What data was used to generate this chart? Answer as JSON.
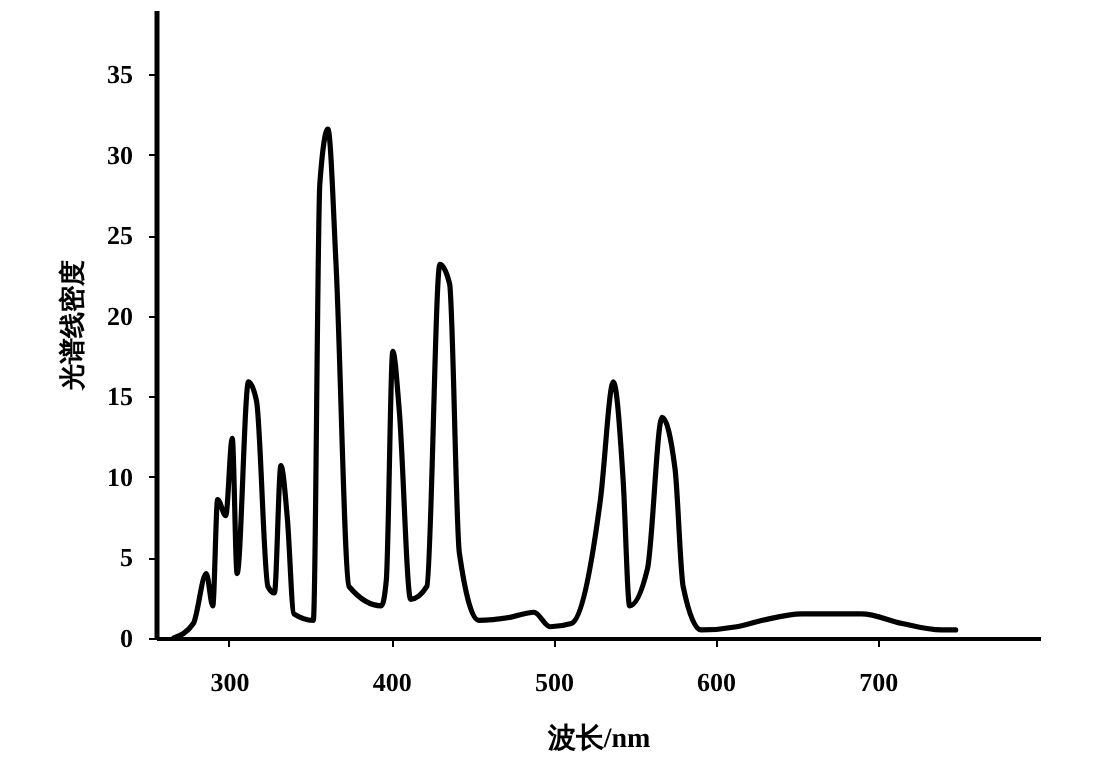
{
  "chart_data": {
    "type": "line",
    "xlabel": "波长/nm",
    "ylabel": "光谱线密度",
    "x": [
      266,
      278,
      286,
      290,
      293,
      298,
      302,
      305,
      312,
      317,
      324,
      328,
      332,
      336,
      340,
      352,
      356,
      361,
      366,
      374,
      394,
      397,
      401,
      405,
      412,
      422,
      430,
      436,
      442,
      454,
      474,
      488,
      498,
      511,
      529,
      537,
      543,
      547,
      558,
      567,
      575,
      580,
      591,
      613,
      629,
      653,
      690,
      715,
      739,
      748
    ],
    "series": [
      {
        "color": "#000000",
        "values": [
          0,
          0.9,
          4.0,
          2.0,
          8.6,
          7.6,
          12.4,
          4.0,
          15.9,
          14.7,
          3.2,
          2.8,
          10.7,
          7.4,
          1.5,
          1.1,
          28.2,
          31.6,
          23.2,
          3.2,
          2.0,
          3.6,
          17.8,
          14.1,
          2.4,
          3.2,
          23.2,
          22.0,
          5.3,
          1.1,
          1.3,
          1.6,
          0.7,
          0.9,
          8.6,
          15.9,
          9.8,
          2.0,
          4.3,
          13.7,
          10.5,
          3.2,
          0.5,
          0.7,
          1.1,
          1.5,
          1.5,
          0.9,
          0.5,
          0.5
        ]
      }
    ],
    "xlim": [
      255,
      800
    ],
    "xticks": [
      300,
      400,
      500,
      600,
      700
    ],
    "ylim": [
      0,
      39
    ],
    "yticks": [
      0,
      5,
      10,
      15,
      20,
      25,
      30,
      35
    ],
    "grid": false,
    "marker": "none",
    "line_style": "solid"
  }
}
